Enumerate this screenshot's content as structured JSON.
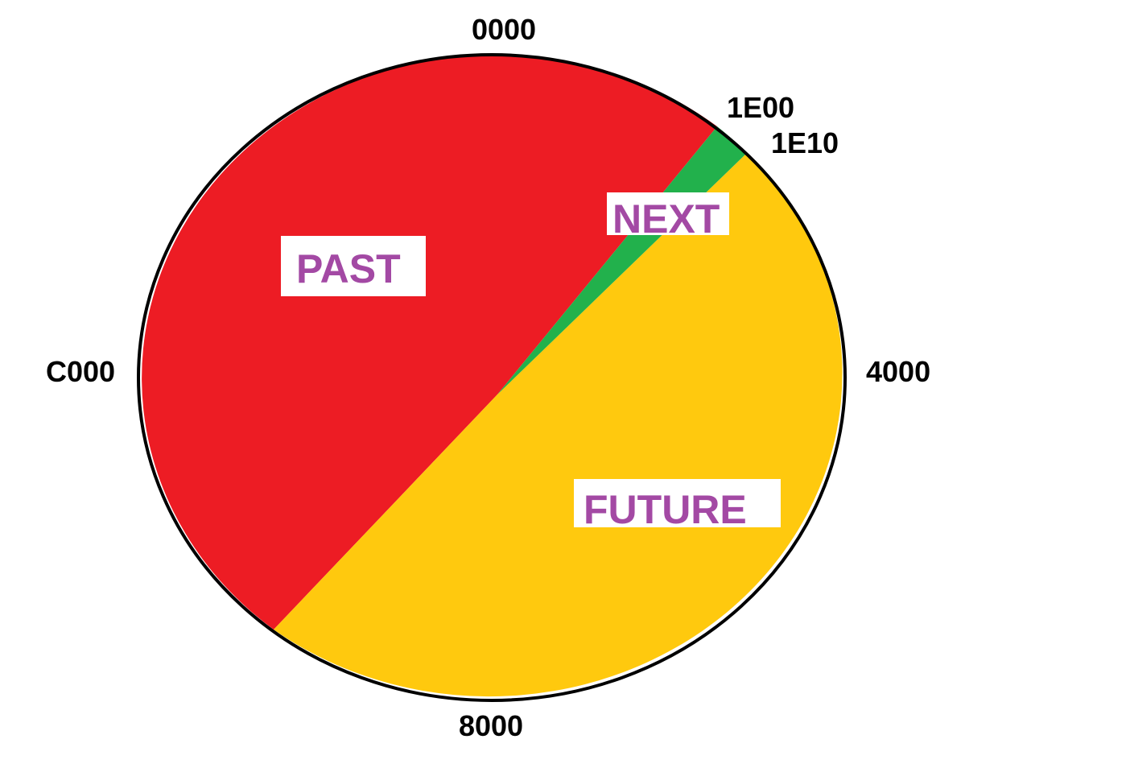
{
  "addresses": {
    "top": "0000",
    "next_start": "1E00",
    "next_end": "1E10",
    "right": "4000",
    "bottom": "8000",
    "left": "C000"
  },
  "regions": {
    "past": {
      "label": "PAST",
      "color": "#ED1C24"
    },
    "next": {
      "label": "NEXT",
      "color": "#22B14C"
    },
    "future": {
      "label": "FUTURE",
      "color": "#FFC90E"
    }
  },
  "label_color": "#A349A4"
}
